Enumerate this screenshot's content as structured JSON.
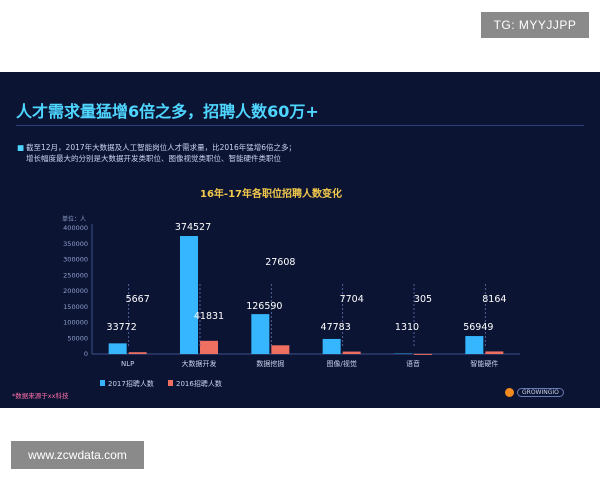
{
  "watermark_top": "TG: MYYJJPP",
  "watermark_bottom": "www.zcwdata.com",
  "slide": {
    "title": "人才需求量猛增6倍之多，招聘人数60万+",
    "bullets": [
      "截至12月，2017年大数据及人工智能岗位人才需求量，比2016年猛增6倍之多；",
      "增长幅度最大的分别是大数据开发类职位、图像视觉类职位、智能硬件类职位"
    ],
    "source": "*数据来源于xx科技",
    "logo_text": "GROWINGIO"
  },
  "chart_data": {
    "type": "bar",
    "title": "16年-17年各职位招聘人数变化",
    "ylabel": "单位：人",
    "ylim": [
      0,
      400000
    ],
    "yticks": [
      0,
      50000,
      100000,
      150000,
      200000,
      250000,
      300000,
      350000,
      400000
    ],
    "categories": [
      "NLP",
      "大数据开发",
      "数据挖掘",
      "图像/视觉",
      "语音",
      "智能硬件"
    ],
    "series": [
      {
        "name": "2017招聘人数",
        "values": [
          33772,
          374527,
          126590,
          47783,
          1310,
          56949
        ],
        "color": "#35b6ff"
      },
      {
        "name": "2016招聘人数",
        "values": [
          5667,
          41831,
          27608,
          7704,
          305,
          8164
        ],
        "color": "#ef6f61"
      }
    ],
    "legend": "bottom-left",
    "grid": false
  }
}
